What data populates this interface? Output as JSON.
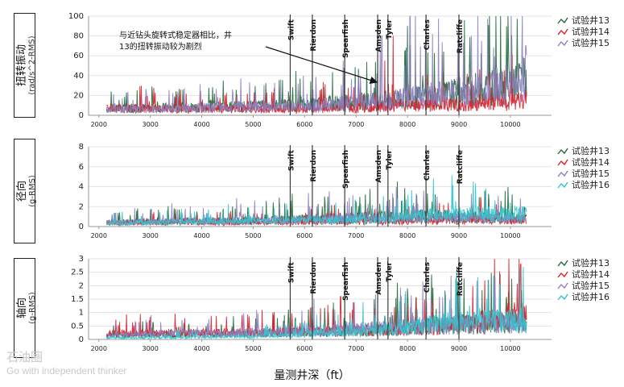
{
  "x_axis_title": "量测井深（ft）",
  "watermark": {
    "cn": "石油圈",
    "en": "Go with independent thinker"
  },
  "callout": {
    "line1": "与近钻头旋转式稳定器相比，井",
    "line2": "13的扭转振动较为剧烈"
  },
  "colors": {
    "w13": "#1f6a3c",
    "w14": "#d8202c",
    "w15": "#8f7fc0",
    "w16": "#33c4cf",
    "marker": "#555555"
  },
  "chart_data": [
    {
      "type": "line",
      "ylabel_main": "扭转振动",
      "ylabel_unit": "(rad/s^2-RMS)",
      "xlim": [
        1800,
        10800
      ],
      "ylim": [
        0,
        100
      ],
      "yticks": [
        "0",
        "20",
        "40",
        "60",
        "80",
        "100"
      ],
      "xticks": [
        "2000",
        "3000",
        "4000",
        "5000",
        "6000",
        "7000",
        "8000",
        "9000",
        "10000"
      ],
      "formations": [
        {
          "name": "Swift",
          "x": 5720
        },
        {
          "name": "Rierdon",
          "x": 6150
        },
        {
          "name": "Spearfish",
          "x": 6780
        },
        {
          "name": "Amsden",
          "x": 7420
        },
        {
          "name": "Tyler",
          "x": 7620
        },
        {
          "name": "Charles",
          "x": 8360
        },
        {
          "name": "Ratcliffe",
          "x": 9000
        }
      ],
      "series": [
        {
          "name": "试验井13",
          "key": "w13",
          "baseline": [
            [
              2200,
              6
            ],
            [
              4000,
              8
            ],
            [
              6000,
              10
            ],
            [
              7500,
              14
            ],
            [
              8500,
              18
            ],
            [
              10000,
              30
            ],
            [
              10300,
              35
            ]
          ],
          "spikes": [
            [
              7950,
              65
            ],
            [
              8000,
              90
            ],
            [
              8300,
              40
            ],
            [
              9600,
              45
            ],
            [
              10200,
              48
            ]
          ]
        },
        {
          "name": "试验井14",
          "key": "w14",
          "baseline": [
            [
              2200,
              7
            ],
            [
              4000,
              6
            ],
            [
              6000,
              6
            ],
            [
              7500,
              8
            ],
            [
              8500,
              10
            ],
            [
              10000,
              12
            ],
            [
              10300,
              15
            ]
          ],
          "spikes": [
            [
              7560,
              55
            ],
            [
              7720,
              80
            ],
            [
              10000,
              30
            ]
          ]
        },
        {
          "name": "试验井15",
          "key": "w15",
          "baseline": [
            [
              2200,
              5
            ],
            [
              4000,
              7
            ],
            [
              6000,
              9
            ],
            [
              7500,
              13
            ],
            [
              8500,
              20
            ],
            [
              10000,
              28
            ],
            [
              10300,
              40
            ]
          ],
          "spikes": [
            [
              6750,
              55
            ],
            [
              7500,
              80
            ],
            [
              8050,
              100
            ],
            [
              8150,
              100
            ],
            [
              10300,
              70
            ]
          ]
        }
      ]
    },
    {
      "type": "line",
      "ylabel_main": "径向",
      "ylabel_unit": "(g-RMS)",
      "xlim": [
        1800,
        10800
      ],
      "ylim": [
        0,
        8
      ],
      "yticks": [
        "0",
        "2",
        "4",
        "6",
        "8"
      ],
      "xticks": [
        "2000",
        "3000",
        "4000",
        "5000",
        "6000",
        "7000",
        "8000",
        "9000",
        "10000"
      ],
      "formations": [
        {
          "name": "Swift",
          "x": 5720
        },
        {
          "name": "Rierdon",
          "x": 6150
        },
        {
          "name": "Spearfish",
          "x": 6780
        },
        {
          "name": "Amsden",
          "x": 7420
        },
        {
          "name": "Tyler",
          "x": 7620
        },
        {
          "name": "Charles",
          "x": 8360
        },
        {
          "name": "Ratcliffe",
          "x": 9000
        }
      ],
      "series": [
        {
          "name": "试验井13",
          "key": "w13",
          "baseline": [
            [
              2200,
              0.4
            ],
            [
              5000,
              0.6
            ],
            [
              7500,
              0.9
            ],
            [
              8500,
              1.0
            ],
            [
              10300,
              0.8
            ]
          ],
          "spikes": [
            [
              7800,
              4.5
            ],
            [
              10000,
              1.8
            ]
          ]
        },
        {
          "name": "试验井14",
          "key": "w14",
          "baseline": [
            [
              2200,
              0.3
            ],
            [
              5000,
              0.4
            ],
            [
              7500,
              0.5
            ],
            [
              8500,
              0.6
            ],
            [
              10300,
              0.6
            ]
          ],
          "spikes": [
            [
              7600,
              2.0
            ]
          ]
        },
        {
          "name": "试验井15",
          "key": "w15",
          "baseline": [
            [
              2200,
              0.4
            ],
            [
              5000,
              0.6
            ],
            [
              7500,
              0.8
            ],
            [
              8500,
              0.9
            ],
            [
              10300,
              0.7
            ]
          ],
          "spikes": [
            [
              8200,
              2.3
            ]
          ]
        },
        {
          "name": "试验井16",
          "key": "w16",
          "baseline": [
            [
              2200,
              0.3
            ],
            [
              5000,
              0.5
            ],
            [
              7500,
              0.7
            ],
            [
              8500,
              1.1
            ],
            [
              10300,
              1.2
            ]
          ],
          "spikes": [
            [
              9700,
              2.6
            ],
            [
              10000,
              2.4
            ]
          ]
        }
      ]
    },
    {
      "type": "line",
      "ylabel_main": "轴向",
      "ylabel_unit": "(g-RMS)",
      "xlim": [
        1800,
        10800
      ],
      "ylim": [
        0,
        3
      ],
      "yticks": [
        "0",
        "0.5",
        "1",
        "1.5",
        "2",
        "2.5",
        "3"
      ],
      "xticks": [
        "2000",
        "3000",
        "4000",
        "5000",
        "6000",
        "7000",
        "8000",
        "9000",
        "10000"
      ],
      "formations": [
        {
          "name": "Swift",
          "x": 5720
        },
        {
          "name": "Rierdon",
          "x": 6150
        },
        {
          "name": "Spearfish",
          "x": 6780
        },
        {
          "name": "Amsden",
          "x": 7420
        },
        {
          "name": "Tyler",
          "x": 7620
        },
        {
          "name": "Charles",
          "x": 8360
        },
        {
          "name": "Ratcliffe",
          "x": 9000
        }
      ],
      "series": [
        {
          "name": "试验井13",
          "key": "w13",
          "baseline": [
            [
              2200,
              0.15
            ],
            [
              5000,
              0.2
            ],
            [
              7500,
              0.35
            ],
            [
              8500,
              0.5
            ],
            [
              10300,
              0.6
            ]
          ],
          "spikes": [
            [
              7800,
              2.1
            ],
            [
              8000,
              1.9
            ]
          ]
        },
        {
          "name": "试验井14",
          "key": "w14",
          "baseline": [
            [
              2200,
              0.2
            ],
            [
              5000,
              0.25
            ],
            [
              7500,
              0.3
            ],
            [
              8500,
              0.4
            ],
            [
              10300,
              0.9
            ]
          ],
          "spikes": [
            [
              6700,
              1.6
            ],
            [
              9500,
              2.2
            ],
            [
              10200,
              2.8
            ]
          ]
        },
        {
          "name": "试验井15",
          "key": "w15",
          "baseline": [
            [
              2200,
              0.15
            ],
            [
              5000,
              0.25
            ],
            [
              7500,
              0.4
            ],
            [
              8500,
              0.45
            ],
            [
              10300,
              0.6
            ]
          ],
          "spikes": [
            [
              8100,
              1.0
            ]
          ]
        },
        {
          "name": "试验井16",
          "key": "w16",
          "baseline": [
            [
              2200,
              0.05
            ],
            [
              5000,
              0.1
            ],
            [
              7500,
              0.3
            ],
            [
              8500,
              0.55
            ],
            [
              10300,
              0.7
            ]
          ],
          "spikes": [
            [
              9300,
              1.0
            ]
          ]
        }
      ]
    }
  ]
}
